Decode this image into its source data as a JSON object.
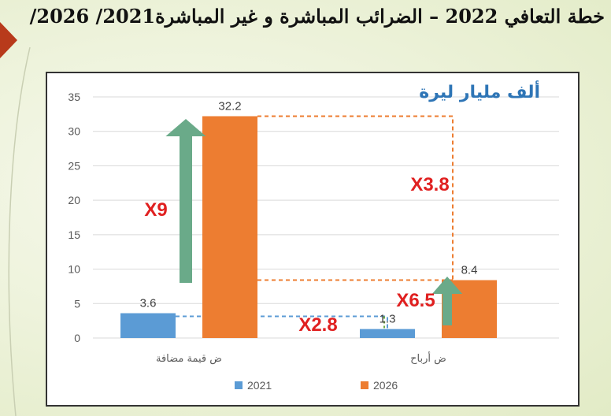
{
  "slide": {
    "title": "خطة التعافي 2022 – الضرائب المباشرة و غير المباشرة2021/ 2026/"
  },
  "chart_data": {
    "type": "bar",
    "unit_label": "ألف مليار ليرة",
    "categories": [
      "ض قيمة مضافة",
      "ض أرباح"
    ],
    "series": [
      {
        "name": "2021",
        "values": [
          3.6,
          1.3
        ],
        "color": "#5b9bd5"
      },
      {
        "name": "2026",
        "values": [
          32.2,
          8.4
        ],
        "color": "#ed7d31"
      }
    ],
    "data_labels": [
      [
        "3.6",
        "1.3"
      ],
      [
        "32.2",
        "8.4"
      ]
    ],
    "ylim": [
      0,
      35
    ],
    "yticks": [
      0,
      5,
      10,
      15,
      20,
      25,
      30,
      35
    ],
    "grid": true,
    "legend_position": "bottom",
    "annotations": {
      "vat_growth": "X9",
      "profit_growth": "X6.5",
      "vat_vs_profit_2026": "X3.8",
      "vat_vs_profit_2021": "X2.8"
    },
    "colors": {
      "arrow": "#6aaa89",
      "annotation_text": "#e02020",
      "unit_label": "#2e75b6"
    }
  }
}
